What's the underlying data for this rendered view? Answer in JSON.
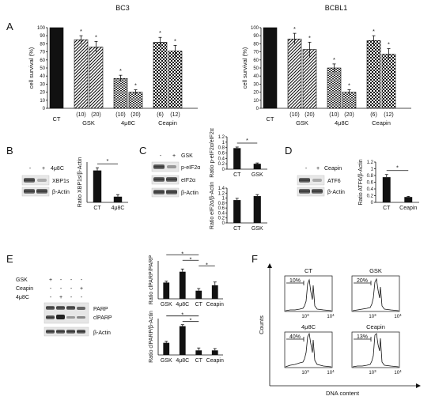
{
  "panels": {
    "A": "A",
    "B": "B",
    "C": "C",
    "D": "D",
    "E": "E",
    "F": "F"
  },
  "chart_data": [
    {
      "id": "A-BC3",
      "type": "bar",
      "title": "BC3",
      "ylabel": "cell survival (%)",
      "ylim": [
        0,
        100
      ],
      "yticks": [
        "0",
        "10",
        "20",
        "30",
        "40",
        "50",
        "60",
        "70",
        "80",
        "90",
        "100"
      ],
      "groups": [
        {
          "name": "CT",
          "bars": [
            {
              "dose": "",
              "value": 100,
              "err": 0,
              "star": "",
              "pattern": "solid"
            }
          ]
        },
        {
          "name": "GSK",
          "bars": [
            {
              "dose": "(10)",
              "value": 85,
              "err": 5,
              "star": "*",
              "pattern": "hatch"
            },
            {
              "dose": "(20)",
              "value": 76,
              "err": 7,
              "star": "*",
              "pattern": "hatch"
            }
          ]
        },
        {
          "name": "4μ8C",
          "bars": [
            {
              "dose": "(10)",
              "value": 37,
              "err": 4,
              "star": "*",
              "pattern": "brick"
            },
            {
              "dose": "(20)",
              "value": 20,
              "err": 3,
              "star": "*",
              "pattern": "brick"
            }
          ]
        },
        {
          "name": "Ceapin",
          "bars": [
            {
              "dose": "(6)",
              "value": 82,
              "err": 6,
              "star": "*",
              "pattern": "check"
            },
            {
              "dose": "(12)",
              "value": 71,
              "err": 7,
              "star": "*",
              "pattern": "check"
            }
          ]
        }
      ]
    },
    {
      "id": "A-BCBL1",
      "type": "bar",
      "title": "BCBL1",
      "ylabel": "cell survival (%)",
      "ylim": [
        0,
        100
      ],
      "yticks": [
        "0",
        "10",
        "20",
        "30",
        "40",
        "50",
        "60",
        "70",
        "80",
        "90",
        "100"
      ],
      "groups": [
        {
          "name": "CT",
          "bars": [
            {
              "dose": "",
              "value": 100,
              "err": 0,
              "star": "",
              "pattern": "solid"
            }
          ]
        },
        {
          "name": "GSK",
          "bars": [
            {
              "dose": "(10)",
              "value": 86,
              "err": 7,
              "star": "*",
              "pattern": "hatch"
            },
            {
              "dose": "(20)",
              "value": 73,
              "err": 9,
              "star": "*",
              "pattern": "hatch"
            }
          ]
        },
        {
          "name": "4μ8C",
          "bars": [
            {
              "dose": "(10)",
              "value": 50,
              "err": 5,
              "star": "*",
              "pattern": "brick"
            },
            {
              "dose": "(20)",
              "value": 20,
              "err": 3,
              "star": "*",
              "pattern": "brick"
            }
          ]
        },
        {
          "name": "Ceapin",
          "bars": [
            {
              "dose": "(6)",
              "value": 84,
              "err": 6,
              "star": "*",
              "pattern": "check"
            },
            {
              "dose": "(12)",
              "value": 67,
              "err": 7,
              "star": "*",
              "pattern": "check"
            }
          ]
        }
      ]
    },
    {
      "id": "B-XBP1s",
      "type": "bar",
      "ylabel": "Ratio XBP1s/β-Actin",
      "categories": [
        "CT",
        "4μ8C"
      ],
      "values": [
        0.95,
        0.17
      ],
      "errors": [
        0.08,
        0.06
      ],
      "ylim": [
        0,
        1.2
      ],
      "sig": "*"
    },
    {
      "id": "C-peIF2a",
      "type": "bar",
      "ylabel": "Ratio p-eIF2α/eIF2α",
      "categories": [
        "CT",
        "GSK"
      ],
      "values": [
        0.78,
        0.2
      ],
      "errors": [
        0.04,
        0.03
      ],
      "ylim": [
        0,
        1.2
      ],
      "yticks": [
        "0",
        "0.2",
        "0.4",
        "0.6",
        "0.8",
        "1",
        "1.2"
      ],
      "sig": "*"
    },
    {
      "id": "C-eIF2a",
      "type": "bar",
      "ylabel": "Ratio eIF2α/β-Actin",
      "categories": [
        "CT",
        "GSK"
      ],
      "values": [
        0.92,
        1.08
      ],
      "errors": [
        0.07,
        0.06
      ],
      "ylim": [
        0,
        1.4
      ],
      "yticks": [
        "0",
        "0.2",
        "0.4",
        "0.6",
        "0.8",
        "1",
        "1.2",
        "1.4"
      ]
    },
    {
      "id": "D-ATF6",
      "type": "bar",
      "ylabel": "Ratio ATF6/β-Actin",
      "categories": [
        "CT",
        "Ceapin"
      ],
      "values": [
        0.75,
        0.16
      ],
      "errors": [
        0.08,
        0.02
      ],
      "ylim": [
        0,
        1.2
      ],
      "yticks": [
        "0",
        "0.2",
        "0.4",
        "0.6",
        "0.8",
        "1",
        "1.2"
      ],
      "sig": "*"
    },
    {
      "id": "E-clPARP-PARP",
      "type": "bar",
      "ylabel": "Ratio clPARP/PARP",
      "categories": [
        "GSK",
        "4μ8C",
        "CT",
        "Ceapin"
      ],
      "values": [
        0.6,
        1.0,
        0.3,
        0.5
      ],
      "errors": [
        0.05,
        0.1,
        0.08,
        0.12
      ],
      "ylim": [
        0,
        1.4
      ],
      "sig_pairs": [
        [
          "GSK",
          "CT"
        ],
        [
          "4μ8C",
          "CT"
        ],
        [
          "CT",
          "Ceapin"
        ]
      ]
    },
    {
      "id": "E-clPARP-Actin",
      "type": "bar",
      "ylabel": "Ratio clPARP/β-Actin",
      "categories": [
        "GSK",
        "4μ8C",
        "CT",
        "Ceapin"
      ],
      "values": [
        0.4,
        0.95,
        0.15,
        0.15
      ],
      "errors": [
        0.05,
        0.05,
        0.08,
        0.06
      ],
      "ylim": [
        0,
        1.2
      ],
      "sig_pairs": [
        [
          "GSK",
          "CT"
        ],
        [
          "4μ8C",
          "CT"
        ]
      ]
    }
  ],
  "blots": {
    "B": {
      "lanes": [
        "-",
        "+"
      ],
      "treatment": "4μ8C",
      "bands": [
        "XBP1s",
        "β-Actin"
      ]
    },
    "C": {
      "lanes": [
        "-",
        "+"
      ],
      "treatment": "GSK",
      "bands": [
        "p-eIF2α",
        "eIF2α",
        "β-Actin"
      ]
    },
    "D": {
      "lanes": [
        "-",
        "+"
      ],
      "treatment": "Ceapin",
      "bands": [
        "ATF6",
        "β-Actin"
      ]
    },
    "E": {
      "rows": [
        {
          "name": "GSK",
          "lanes": [
            "+",
            "-",
            "-",
            "-"
          ]
        },
        {
          "name": "Ceapin",
          "lanes": [
            "-",
            "-",
            "-",
            "+"
          ]
        },
        {
          "name": "4μ8C",
          "lanes": [
            "-",
            "+",
            "-",
            "-"
          ]
        }
      ],
      "bands": [
        "PARP",
        "clPARP",
        "β-Actin"
      ]
    }
  },
  "flow": {
    "ylabel": "Counts",
    "xlabel": "DNA content",
    "tick_10": "10",
    "plots": [
      {
        "title": "CT",
        "pct": "10%"
      },
      {
        "title": "GSK",
        "pct": "20%"
      },
      {
        "title": "4μ8C",
        "pct": "40%"
      },
      {
        "title": "Ceapin",
        "pct": "13%"
      }
    ]
  }
}
